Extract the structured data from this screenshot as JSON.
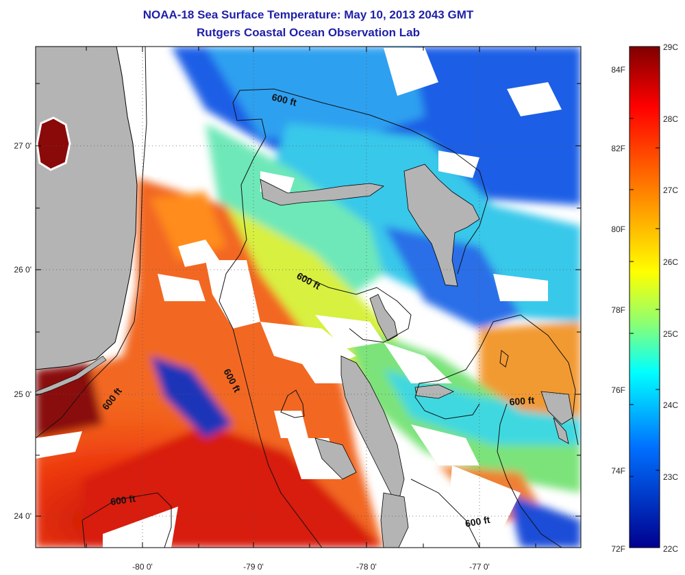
{
  "header": {
    "title": "NOAA-18 Sea Surface Temperature:  May 10, 2013 2043 GMT",
    "subtitle": "Rutgers Coastal Ocean Observation Lab"
  },
  "map": {
    "lat_ticks": [
      "27 0'",
      "26 0'",
      "25 0'",
      "24 0'"
    ],
    "lon_ticks": [
      "-80 0'",
      "-79 0'",
      "-78 0'",
      "-77 0'"
    ],
    "contour_labels": [
      "600 ft",
      "600 ft",
      "600 ft",
      "600 ft",
      "600 ft",
      "600 ft"
    ],
    "colors": {
      "land": "#b4b4b4",
      "cloud": "#ffffff",
      "border": "#000000"
    }
  },
  "colorbar": {
    "celsius": [
      "29C",
      "28C",
      "27C",
      "26C",
      "25C",
      "24C",
      "23C",
      "22C"
    ],
    "fahrenheit": [
      "84F",
      "82F",
      "80F",
      "78F",
      "76F",
      "74F",
      "72F"
    ],
    "range_c": [
      22,
      29
    ]
  }
}
